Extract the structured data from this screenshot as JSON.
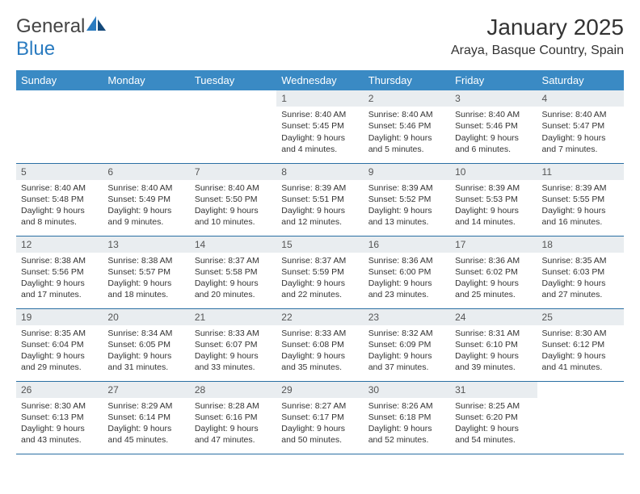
{
  "brand": {
    "word1": "General",
    "word2": "Blue"
  },
  "title": "January 2025",
  "location": "Araya, Basque Country, Spain",
  "colors": {
    "header_bg": "#3a8ac4",
    "header_text": "#ffffff",
    "rule": "#2a6fa3",
    "daynum_bg": "#e9edf0",
    "daynum_text": "#555555",
    "body_text": "#333333",
    "logo_blue": "#2a7bc0",
    "logo_gray": "#444444",
    "background": "#ffffff"
  },
  "typography": {
    "title_fontsize": 28,
    "location_fontsize": 16,
    "dayheader_fontsize": 13,
    "daynum_fontsize": 12,
    "cell_fontsize": 10.5
  },
  "day_headers": [
    "Sunday",
    "Monday",
    "Tuesday",
    "Wednesday",
    "Thursday",
    "Friday",
    "Saturday"
  ],
  "weeks": [
    [
      null,
      null,
      null,
      {
        "n": "1",
        "sr": "8:40 AM",
        "ss": "5:45 PM",
        "dl": "9 hours and 4 minutes."
      },
      {
        "n": "2",
        "sr": "8:40 AM",
        "ss": "5:46 PM",
        "dl": "9 hours and 5 minutes."
      },
      {
        "n": "3",
        "sr": "8:40 AM",
        "ss": "5:46 PM",
        "dl": "9 hours and 6 minutes."
      },
      {
        "n": "4",
        "sr": "8:40 AM",
        "ss": "5:47 PM",
        "dl": "9 hours and 7 minutes."
      }
    ],
    [
      {
        "n": "5",
        "sr": "8:40 AM",
        "ss": "5:48 PM",
        "dl": "9 hours and 8 minutes."
      },
      {
        "n": "6",
        "sr": "8:40 AM",
        "ss": "5:49 PM",
        "dl": "9 hours and 9 minutes."
      },
      {
        "n": "7",
        "sr": "8:40 AM",
        "ss": "5:50 PM",
        "dl": "9 hours and 10 minutes."
      },
      {
        "n": "8",
        "sr": "8:39 AM",
        "ss": "5:51 PM",
        "dl": "9 hours and 12 minutes."
      },
      {
        "n": "9",
        "sr": "8:39 AM",
        "ss": "5:52 PM",
        "dl": "9 hours and 13 minutes."
      },
      {
        "n": "10",
        "sr": "8:39 AM",
        "ss": "5:53 PM",
        "dl": "9 hours and 14 minutes."
      },
      {
        "n": "11",
        "sr": "8:39 AM",
        "ss": "5:55 PM",
        "dl": "9 hours and 16 minutes."
      }
    ],
    [
      {
        "n": "12",
        "sr": "8:38 AM",
        "ss": "5:56 PM",
        "dl": "9 hours and 17 minutes."
      },
      {
        "n": "13",
        "sr": "8:38 AM",
        "ss": "5:57 PM",
        "dl": "9 hours and 18 minutes."
      },
      {
        "n": "14",
        "sr": "8:37 AM",
        "ss": "5:58 PM",
        "dl": "9 hours and 20 minutes."
      },
      {
        "n": "15",
        "sr": "8:37 AM",
        "ss": "5:59 PM",
        "dl": "9 hours and 22 minutes."
      },
      {
        "n": "16",
        "sr": "8:36 AM",
        "ss": "6:00 PM",
        "dl": "9 hours and 23 minutes."
      },
      {
        "n": "17",
        "sr": "8:36 AM",
        "ss": "6:02 PM",
        "dl": "9 hours and 25 minutes."
      },
      {
        "n": "18",
        "sr": "8:35 AM",
        "ss": "6:03 PM",
        "dl": "9 hours and 27 minutes."
      }
    ],
    [
      {
        "n": "19",
        "sr": "8:35 AM",
        "ss": "6:04 PM",
        "dl": "9 hours and 29 minutes."
      },
      {
        "n": "20",
        "sr": "8:34 AM",
        "ss": "6:05 PM",
        "dl": "9 hours and 31 minutes."
      },
      {
        "n": "21",
        "sr": "8:33 AM",
        "ss": "6:07 PM",
        "dl": "9 hours and 33 minutes."
      },
      {
        "n": "22",
        "sr": "8:33 AM",
        "ss": "6:08 PM",
        "dl": "9 hours and 35 minutes."
      },
      {
        "n": "23",
        "sr": "8:32 AM",
        "ss": "6:09 PM",
        "dl": "9 hours and 37 minutes."
      },
      {
        "n": "24",
        "sr": "8:31 AM",
        "ss": "6:10 PM",
        "dl": "9 hours and 39 minutes."
      },
      {
        "n": "25",
        "sr": "8:30 AM",
        "ss": "6:12 PM",
        "dl": "9 hours and 41 minutes."
      }
    ],
    [
      {
        "n": "26",
        "sr": "8:30 AM",
        "ss": "6:13 PM",
        "dl": "9 hours and 43 minutes."
      },
      {
        "n": "27",
        "sr": "8:29 AM",
        "ss": "6:14 PM",
        "dl": "9 hours and 45 minutes."
      },
      {
        "n": "28",
        "sr": "8:28 AM",
        "ss": "6:16 PM",
        "dl": "9 hours and 47 minutes."
      },
      {
        "n": "29",
        "sr": "8:27 AM",
        "ss": "6:17 PM",
        "dl": "9 hours and 50 minutes."
      },
      {
        "n": "30",
        "sr": "8:26 AM",
        "ss": "6:18 PM",
        "dl": "9 hours and 52 minutes."
      },
      {
        "n": "31",
        "sr": "8:25 AM",
        "ss": "6:20 PM",
        "dl": "9 hours and 54 minutes."
      },
      null
    ]
  ],
  "labels": {
    "sunrise": "Sunrise:",
    "sunset": "Sunset:",
    "daylight": "Daylight:"
  }
}
